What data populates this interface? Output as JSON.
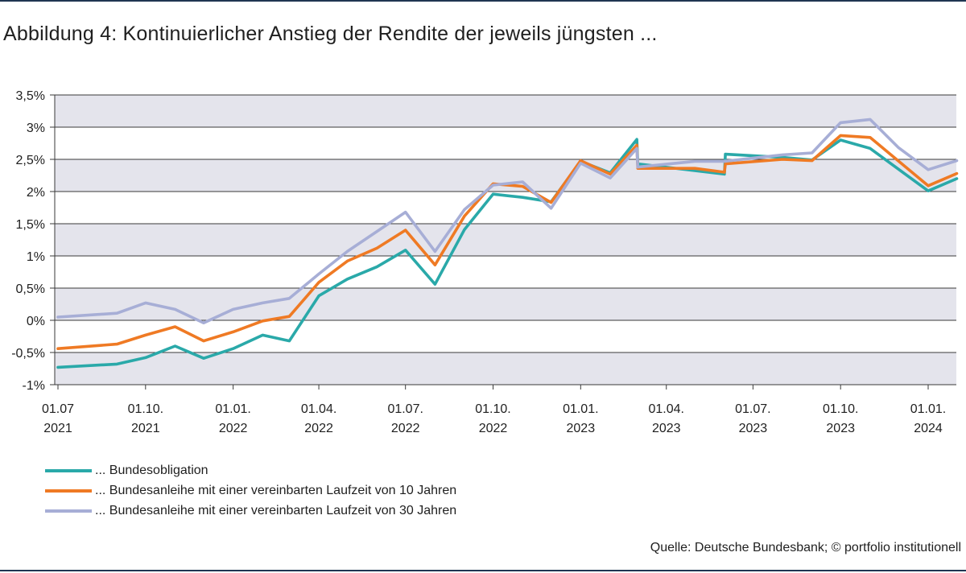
{
  "title": "Abbildung 4: Kontinuierlicher Anstieg der Rendite der jeweils jüngsten ...",
  "source": "Quelle: Deutsche Bundesbank; © portfolio institutionell",
  "chart_data": {
    "type": "line",
    "title": "Abbildung 4: Kontinuierlicher Anstieg der Rendite der jeweils jüngsten ...",
    "xlabel": "",
    "ylabel": "",
    "x_range": [
      "2021-07-01",
      "2024-01-31"
    ],
    "ylim": [
      -1,
      3.5
    ],
    "y_ticks": [
      {
        "value": 3.5,
        "label": "3,5%"
      },
      {
        "value": 3,
        "label": "3%"
      },
      {
        "value": 2.5,
        "label": "2,5%"
      },
      {
        "value": 2,
        "label": "2%"
      },
      {
        "value": 1.5,
        "label": "1,5%"
      },
      {
        "value": 1,
        "label": "1%"
      },
      {
        "value": 0.5,
        "label": "0,5%"
      },
      {
        "value": 0,
        "label": "0%"
      },
      {
        "value": -0.5,
        "label": "-0,5%"
      },
      {
        "value": -1,
        "label": "-1%"
      }
    ],
    "x_ticks": [
      {
        "date": "2021-07-01",
        "line1": "01.07",
        "line2": "2021"
      },
      {
        "date": "2021-10-01",
        "line1": "01.10.",
        "line2": "2021"
      },
      {
        "date": "2022-01-01",
        "line1": "01.01.",
        "line2": "2022"
      },
      {
        "date": "2022-04-01",
        "line1": "01.04.",
        "line2": "2022"
      },
      {
        "date": "2022-07-01",
        "line1": "01.07.",
        "line2": "2022"
      },
      {
        "date": "2022-10-01",
        "line1": "01.10.",
        "line2": "2022"
      },
      {
        "date": "2023-01-01",
        "line1": "01.01.",
        "line2": "2023"
      },
      {
        "date": "2023-04-01",
        "line1": "01.04.",
        "line2": "2023"
      },
      {
        "date": "2023-07-01",
        "line1": "01.07.",
        "line2": "2023"
      },
      {
        "date": "2023-10-01",
        "line1": "01.10.",
        "line2": "2023"
      },
      {
        "date": "2024-01-01",
        "line1": "01.01.",
        "line2": "2024"
      }
    ],
    "grid": "horizontal, alternating bands",
    "legend_position": "bottom-left",
    "series": [
      {
        "name": "... Bundesobligation",
        "color": "#2aa9a9",
        "points": [
          [
            "2021-07-01",
            -0.73
          ],
          [
            "2021-09-01",
            -0.68
          ],
          [
            "2021-10-01",
            -0.58
          ],
          [
            "2021-11-01",
            -0.4
          ],
          [
            "2021-12-01",
            -0.59
          ],
          [
            "2022-01-01",
            -0.44
          ],
          [
            "2022-02-01",
            -0.23
          ],
          [
            "2022-03-01",
            -0.32
          ],
          [
            "2022-04-01",
            0.38
          ],
          [
            "2022-05-01",
            0.64
          ],
          [
            "2022-06-01",
            0.83
          ],
          [
            "2022-07-01",
            1.09
          ],
          [
            "2022-08-01",
            0.56
          ],
          [
            "2022-09-01",
            1.41
          ],
          [
            "2022-10-01",
            1.96
          ],
          [
            "2022-11-01",
            1.91
          ],
          [
            "2022-12-01",
            1.84
          ],
          [
            "2023-01-01",
            2.47
          ],
          [
            "2023-02-01",
            2.29
          ],
          [
            "2023-03-01",
            2.81
          ],
          [
            "2023-03-02",
            2.43
          ],
          [
            "2023-06-01",
            2.27
          ],
          [
            "2023-06-02",
            2.58
          ],
          [
            "2023-08-01",
            2.53
          ],
          [
            "2023-09-01",
            2.49
          ],
          [
            "2023-10-01",
            2.8
          ],
          [
            "2023-11-01",
            2.67
          ],
          [
            "2024-01-01",
            2.01
          ],
          [
            "2024-01-31",
            2.2
          ]
        ]
      },
      {
        "name": "... Bundesanleihe mit einer vereinbarten Laufzeit von 10 Jahren",
        "color": "#ef7a24",
        "points": [
          [
            "2021-07-01",
            -0.44
          ],
          [
            "2021-09-01",
            -0.37
          ],
          [
            "2021-10-01",
            -0.23
          ],
          [
            "2021-11-01",
            -0.1
          ],
          [
            "2021-12-01",
            -0.32
          ],
          [
            "2022-01-01",
            -0.18
          ],
          [
            "2022-02-01",
            -0.01
          ],
          [
            "2022-03-01",
            0.06
          ],
          [
            "2022-04-01",
            0.59
          ],
          [
            "2022-05-01",
            0.92
          ],
          [
            "2022-06-01",
            1.12
          ],
          [
            "2022-07-01",
            1.4
          ],
          [
            "2022-08-01",
            0.86
          ],
          [
            "2022-09-01",
            1.62
          ],
          [
            "2022-10-01",
            2.12
          ],
          [
            "2022-11-01",
            2.08
          ],
          [
            "2022-12-01",
            1.83
          ],
          [
            "2023-01-01",
            2.48
          ],
          [
            "2023-02-01",
            2.27
          ],
          [
            "2023-03-01",
            2.72
          ],
          [
            "2023-03-02",
            2.36
          ],
          [
            "2023-05-01",
            2.36
          ],
          [
            "2023-06-01",
            2.3
          ],
          [
            "2023-06-02",
            2.43
          ],
          [
            "2023-08-01",
            2.5
          ],
          [
            "2023-09-01",
            2.48
          ],
          [
            "2023-10-01",
            2.87
          ],
          [
            "2023-11-01",
            2.84
          ],
          [
            "2024-01-01",
            2.09
          ],
          [
            "2024-01-31",
            2.28
          ]
        ]
      },
      {
        "name": "... Bundesanleihe mit einer vereinbarten Laufzeit von 30 Jahren",
        "color": "#a7aed6",
        "points": [
          [
            "2021-07-01",
            0.05
          ],
          [
            "2021-09-01",
            0.11
          ],
          [
            "2021-10-01",
            0.27
          ],
          [
            "2021-11-01",
            0.17
          ],
          [
            "2021-12-01",
            -0.04
          ],
          [
            "2022-01-01",
            0.17
          ],
          [
            "2022-02-01",
            0.27
          ],
          [
            "2022-03-01",
            0.34
          ],
          [
            "2022-04-01",
            0.72
          ],
          [
            "2022-05-01",
            1.07
          ],
          [
            "2022-06-01",
            1.38
          ],
          [
            "2022-07-01",
            1.68
          ],
          [
            "2022-08-01",
            1.07
          ],
          [
            "2022-09-01",
            1.72
          ],
          [
            "2022-10-01",
            2.1
          ],
          [
            "2022-11-01",
            2.15
          ],
          [
            "2022-12-01",
            1.74
          ],
          [
            "2023-01-01",
            2.44
          ],
          [
            "2023-02-01",
            2.21
          ],
          [
            "2023-03-01",
            2.67
          ],
          [
            "2023-03-02",
            2.38
          ],
          [
            "2023-05-01",
            2.47
          ],
          [
            "2023-06-01",
            2.47
          ],
          [
            "2023-08-01",
            2.57
          ],
          [
            "2023-09-01",
            2.6
          ],
          [
            "2023-10-01",
            3.07
          ],
          [
            "2023-11-01",
            3.12
          ],
          [
            "2023-12-01",
            2.68
          ],
          [
            "2024-01-01",
            2.34
          ],
          [
            "2024-01-31",
            2.48
          ]
        ]
      }
    ]
  }
}
